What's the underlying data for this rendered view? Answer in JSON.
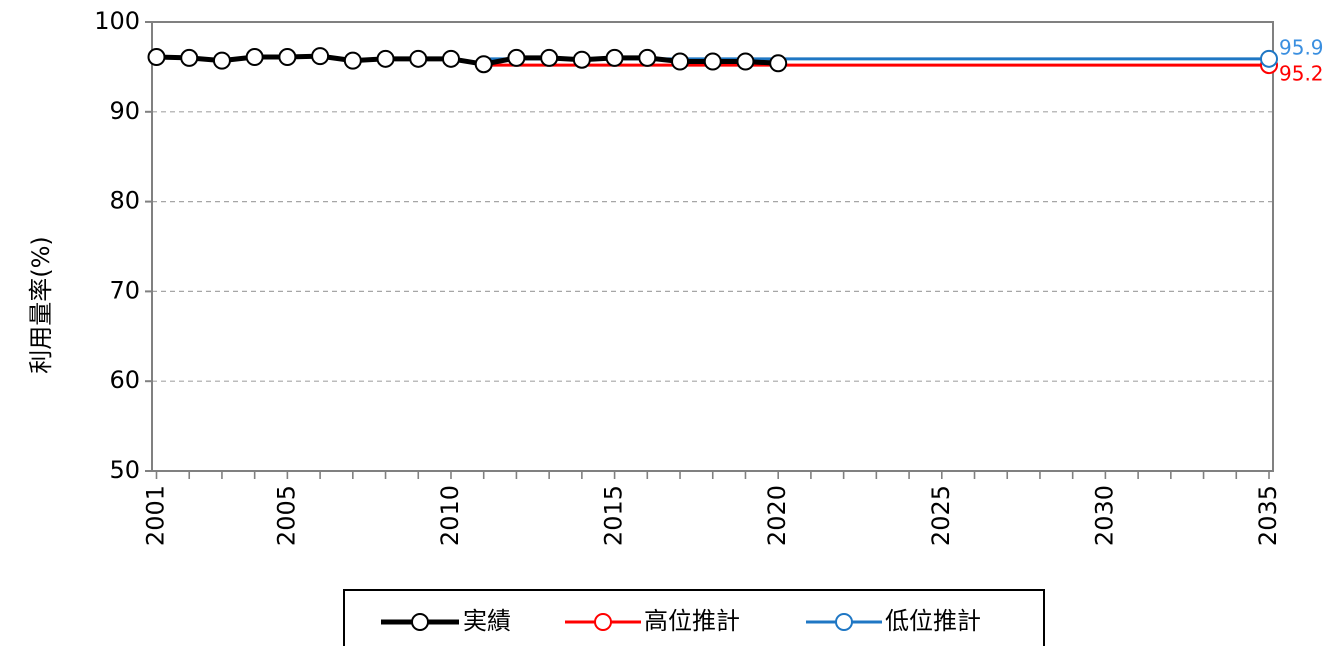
{
  "chart_data": {
    "type": "line",
    "title": "",
    "xlabel": "",
    "ylabel": "利用量率(%)",
    "xlim": [
      2001,
      2035
    ],
    "ylim": [
      50,
      100
    ],
    "yticks": [
      50,
      60,
      70,
      80,
      90,
      100
    ],
    "xticks": [
      2001,
      2005,
      2010,
      2015,
      2020,
      2025,
      2030,
      2035
    ],
    "grid": "horizontal dashed",
    "legend_position": "bottom",
    "series": [
      {
        "name": "実績",
        "color": "#000000",
        "x": [
          2001,
          2002,
          2003,
          2004,
          2005,
          2006,
          2007,
          2008,
          2009,
          2010,
          2011,
          2012,
          2013,
          2014,
          2015,
          2016,
          2017,
          2018,
          2019,
          2020
        ],
        "values": [
          96.1,
          96.0,
          95.7,
          96.1,
          96.1,
          96.2,
          95.7,
          95.9,
          95.9,
          95.9,
          95.3,
          96.0,
          96.0,
          95.8,
          96.0,
          96.0,
          95.6,
          95.6,
          95.6,
          95.4
        ]
      },
      {
        "name": "高位推計",
        "color": "#ff0000",
        "x": [
          2011,
          2035
        ],
        "values": [
          95.2,
          95.2
        ],
        "end_label": "95.2"
      },
      {
        "name": "低位推計",
        "color": "#1f77c4",
        "x": [
          2011,
          2035
        ],
        "values": [
          95.9,
          95.9
        ],
        "end_label": "95.9"
      }
    ]
  },
  "colors": {
    "axis": "#808080",
    "grid": "#a6a6a6",
    "high_label": "#ff0000",
    "low_label": "#3a8fe0"
  }
}
